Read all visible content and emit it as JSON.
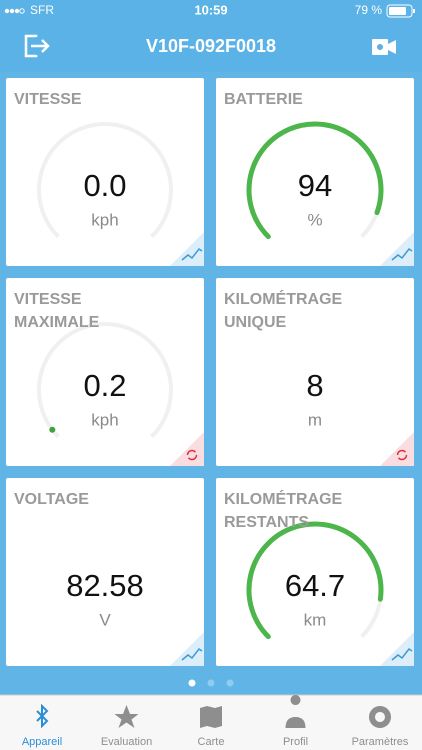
{
  "status_bar": {
    "carrier": "SFR",
    "time": "10:59",
    "battery": "79 %"
  },
  "header": {
    "title": "V10F-092F0018"
  },
  "tiles": [
    {
      "title_lines": [
        "VITESSE"
      ],
      "value": "0.0",
      "unit": "kph"
    },
    {
      "title_lines": [
        "BATTERIE"
      ],
      "value": "94",
      "unit": "%"
    },
    {
      "title_lines": [
        "VITESSE",
        "MAXIMALE"
      ],
      "value": "0.2",
      "unit": "kph"
    },
    {
      "title_lines": [
        "KILOMÉTRAGE",
        "UNIQUE"
      ],
      "value": "8",
      "unit": "m"
    },
    {
      "title_lines": [
        "VOLTAGE"
      ],
      "value": "82.58",
      "unit": "V"
    },
    {
      "title_lines": [
        "KILOMÉTRAGE",
        "RESTANTS"
      ],
      "value": "64.7",
      "unit": "km"
    }
  ],
  "tabs": [
    "Appareil",
    "Evaluation",
    "Carte",
    "Profil",
    "Paramètres"
  ]
}
